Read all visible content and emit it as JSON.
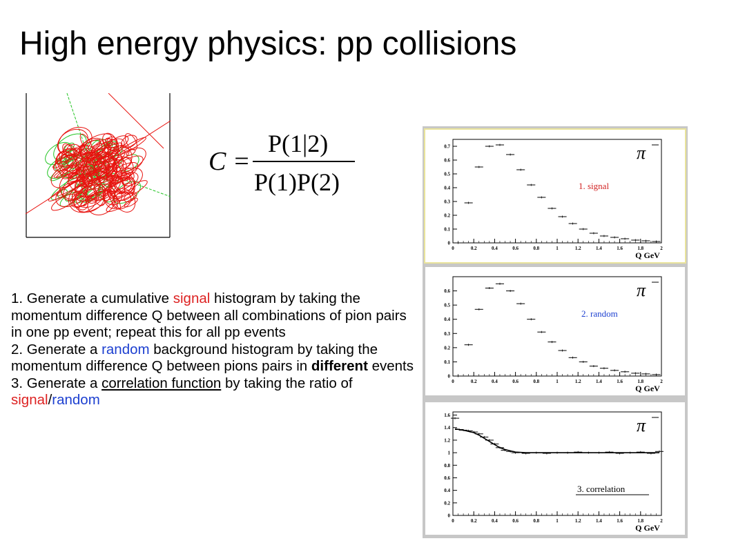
{
  "slide": {
    "title": "High energy physics: pp collisions"
  },
  "formula": {
    "lhs": "C =",
    "numerator": "P(1|2)",
    "denominator": "P(1)P(2)"
  },
  "steps": {
    "s1_a": "1. Generate a cumulative ",
    "s1_red": "signal",
    "s1_b": " histogram by taking the momentum difference Q between all combinations of pion pairs in one pp event; repeat this for all pp events",
    "s2_a": "2. Generate a ",
    "s2_blue": "random",
    "s2_b": " background histogram by taking the momentum difference Q between pions pairs in ",
    "s2_bold": "different",
    "s2_c": " events",
    "s3_a": "3. Generate a ",
    "s3_u": "correlation function",
    "s3_b": " by taking the ratio of ",
    "s3_red": "signal",
    "s3_slash": "/",
    "s3_blue": "random"
  },
  "colors": {
    "signal": "#d22222",
    "random": "#1c3fd0",
    "track_red": "#e8120e",
    "track_green": "#22c422"
  },
  "chart_data": [
    {
      "type": "scatter",
      "panel": "signal",
      "annotation": "1. signal",
      "particle": "π",
      "xlabel": "Q  GeV",
      "xlim": [
        0,
        2
      ],
      "ylim": [
        0,
        0.75
      ],
      "xticks": [
        "0",
        "0.2",
        "0.4",
        "0.6",
        "0.8",
        "1",
        "1.2",
        "1.4",
        "1.6",
        "1.8",
        "2"
      ],
      "yticks": [
        "0",
        "0.1",
        "0.2",
        "0.3",
        "0.4",
        "0.5",
        "0.6",
        "0.7"
      ],
      "x": [
        0.05,
        0.15,
        0.25,
        0.35,
        0.45,
        0.55,
        0.65,
        0.75,
        0.85,
        0.95,
        1.05,
        1.15,
        1.25,
        1.35,
        1.45,
        1.55,
        1.65,
        1.75,
        1.85,
        1.95
      ],
      "values": [
        0.0,
        0.29,
        0.55,
        0.7,
        0.71,
        0.64,
        0.53,
        0.42,
        0.33,
        0.25,
        0.19,
        0.14,
        0.1,
        0.07,
        0.05,
        0.04,
        0.03,
        0.02,
        0.015,
        0.01
      ]
    },
    {
      "type": "scatter",
      "panel": "random",
      "annotation": "2. random",
      "particle": "π",
      "xlabel": "Q  GeV",
      "xlim": [
        0,
        2
      ],
      "ylim": [
        0,
        0.7
      ],
      "xticks": [
        "0",
        "0.2",
        "0.4",
        "0.6",
        "0.8",
        "1",
        "1.2",
        "1.4",
        "1.6",
        "1.8",
        "2"
      ],
      "yticks": [
        "0",
        "0.1",
        "0.2",
        "0.3",
        "0.4",
        "0.5",
        "0.6"
      ],
      "x": [
        0.05,
        0.15,
        0.25,
        0.35,
        0.45,
        0.55,
        0.65,
        0.75,
        0.85,
        0.95,
        1.05,
        1.15,
        1.25,
        1.35,
        1.45,
        1.55,
        1.65,
        1.75,
        1.85,
        1.95
      ],
      "values": [
        0.0,
        0.22,
        0.47,
        0.62,
        0.65,
        0.6,
        0.51,
        0.4,
        0.31,
        0.24,
        0.18,
        0.13,
        0.1,
        0.07,
        0.055,
        0.04,
        0.03,
        0.02,
        0.015,
        0.01
      ]
    },
    {
      "type": "line",
      "panel": "correlation",
      "annotation": "3. correlation",
      "particle": "π",
      "xlabel": "Q  GeV",
      "xlim": [
        0,
        2
      ],
      "ylim": [
        0,
        1.65
      ],
      "xticks": [
        "0",
        "0.2",
        "0.4",
        "0.6",
        "0.8",
        "1",
        "1.2",
        "1.4",
        "1.6",
        "1.8",
        "2"
      ],
      "yticks": [
        "0",
        "0.2",
        "0.4",
        "0.6",
        "0.8",
        "1",
        "1.2",
        "1.4",
        "1.6"
      ],
      "x": [
        0.02,
        0.06,
        0.1,
        0.15,
        0.2,
        0.25,
        0.3,
        0.35,
        0.4,
        0.45,
        0.5,
        0.55,
        0.6,
        0.7,
        0.8,
        0.9,
        1.0,
        1.1,
        1.2,
        1.3,
        1.4,
        1.5,
        1.6,
        1.7,
        1.8,
        1.9,
        1.98
      ],
      "values": [
        1.55,
        1.37,
        1.36,
        1.35,
        1.33,
        1.3,
        1.25,
        1.2,
        1.14,
        1.08,
        1.04,
        1.02,
        1.0,
        0.99,
        1.0,
        0.99,
        1.0,
        1.0,
        1.01,
        1.0,
        1.0,
        1.01,
        0.99,
        1.0,
        1.01,
        0.99,
        1.02
      ],
      "fit": [
        1.38,
        1.37,
        1.36,
        1.34,
        1.32,
        1.28,
        1.23,
        1.18,
        1.13,
        1.08,
        1.05,
        1.03,
        1.01,
        1.0,
        1.0,
        1.0,
        1.0,
        1.0,
        1.0,
        1.0,
        1.0,
        1.0,
        1.0,
        1.0,
        1.0,
        1.0,
        1.0
      ]
    }
  ]
}
